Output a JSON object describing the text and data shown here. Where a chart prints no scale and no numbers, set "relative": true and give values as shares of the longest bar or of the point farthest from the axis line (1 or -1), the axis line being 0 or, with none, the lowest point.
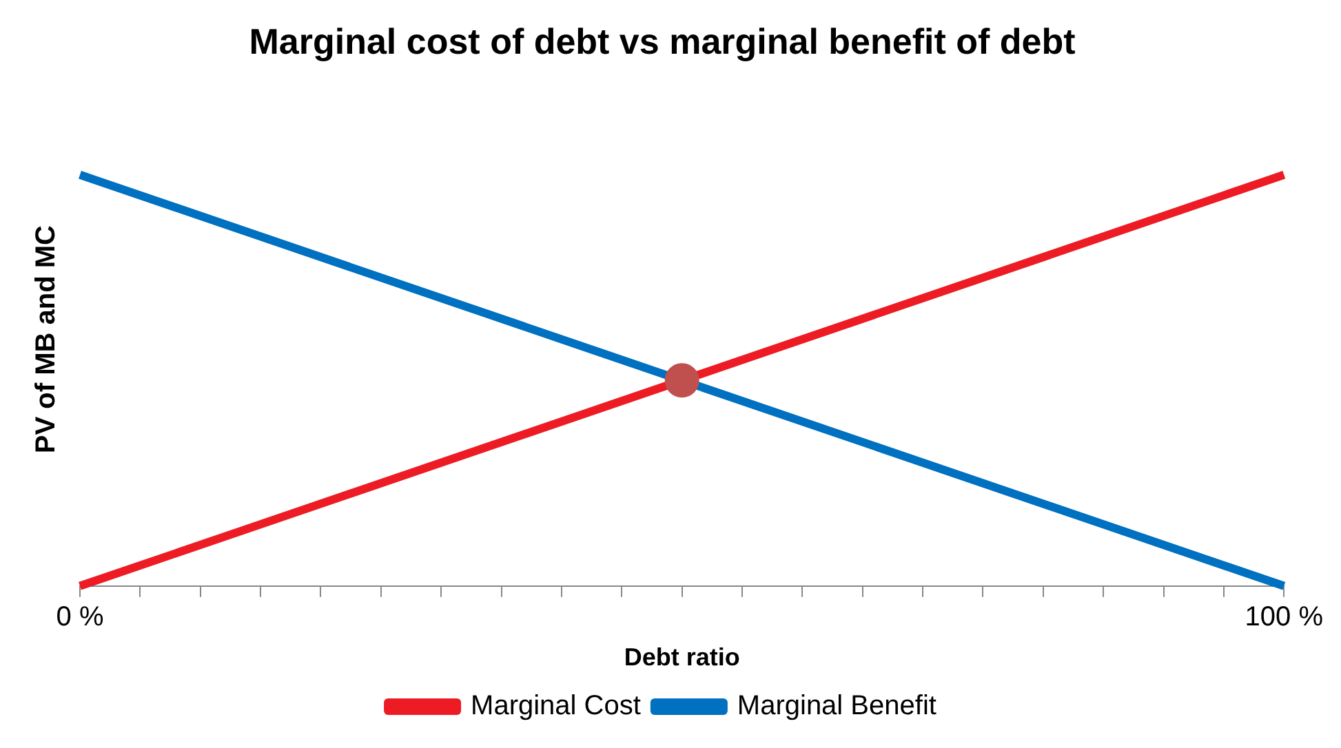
{
  "chart_data": {
    "type": "line",
    "title": "Marginal cost of debt vs marginal benefit of debt",
    "xlabel": "Debt ratio",
    "ylabel": "PV of MB and MC",
    "relative": true,
    "xlim": [
      0,
      100
    ],
    "xticks": [
      {
        "value": 0,
        "label": "0 %"
      },
      {
        "value": 5,
        "label": null
      },
      {
        "value": 10,
        "label": null
      },
      {
        "value": 15,
        "label": null
      },
      {
        "value": 20,
        "label": null
      },
      {
        "value": 25,
        "label": null
      },
      {
        "value": 30,
        "label": null
      },
      {
        "value": 35,
        "label": null
      },
      {
        "value": 40,
        "label": null
      },
      {
        "value": 45,
        "label": null
      },
      {
        "value": 50,
        "label": null
      },
      {
        "value": 55,
        "label": null
      },
      {
        "value": 60,
        "label": null
      },
      {
        "value": 65,
        "label": null
      },
      {
        "value": 70,
        "label": null
      },
      {
        "value": 75,
        "label": null
      },
      {
        "value": 80,
        "label": null
      },
      {
        "value": 85,
        "label": null
      },
      {
        "value": 90,
        "label": null
      },
      {
        "value": 95,
        "label": null
      },
      {
        "value": 100,
        "label": "100 %"
      }
    ],
    "grid": false,
    "legend": "bottom",
    "marker": "none",
    "series": [
      {
        "name": "Marginal Cost",
        "color": "#ed1c24",
        "x": [
          0,
          100
        ],
        "values": [
          0,
          1
        ]
      },
      {
        "name": "Marginal Benefit",
        "color": "#0070c0",
        "x": [
          0,
          100
        ],
        "values": [
          1,
          0
        ]
      },
      {
        "type": "scatter",
        "color": "#c0504d",
        "x": [
          50
        ],
        "values": [
          0.5
        ],
        "marker": "circle"
      }
    ]
  }
}
